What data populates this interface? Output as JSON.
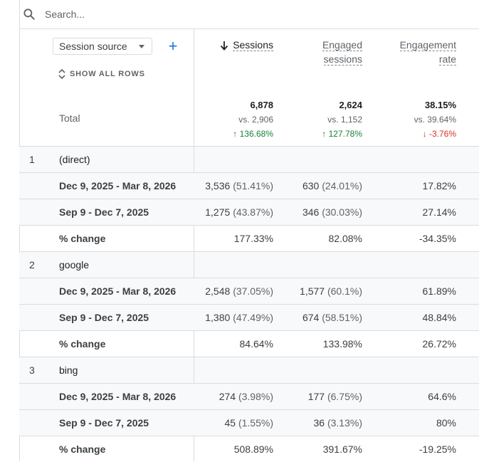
{
  "search": {
    "placeholder": "Search..."
  },
  "dimension": {
    "label": "Session source"
  },
  "show_all_rows": "SHOW ALL ROWS",
  "columns": {
    "sessions": "Sessions",
    "engaged_line1": "Engaged",
    "engaged_line2": "sessions",
    "rate_line1": "Engagement",
    "rate_line2": "rate"
  },
  "total": {
    "label": "Total",
    "sessions": {
      "value": "6,878",
      "vs": "vs. 2,906",
      "change": "↑ 136.68%"
    },
    "engaged": {
      "value": "2,624",
      "vs": "vs. 1,152",
      "change": "↑ 127.78%"
    },
    "rate": {
      "value": "38.15%",
      "vs": "vs. 39.64%",
      "change": "↓ -3.76%"
    }
  },
  "groups": [
    {
      "index": "1",
      "name": "(direct)",
      "rows": [
        {
          "label": "Dec 9, 2025 - Mar 8, 2026",
          "s": "3,536",
          "sp": "(51.41%)",
          "e": "630",
          "ep": "(24.01%)",
          "r": "17.82%"
        },
        {
          "label": "Sep 9 - Dec 7, 2025",
          "s": "1,275",
          "sp": "(43.87%)",
          "e": "346",
          "ep": "(30.03%)",
          "r": "27.14%"
        },
        {
          "label": "% change",
          "s": "177.33%",
          "sp": "",
          "e": "82.08%",
          "ep": "",
          "r": "-34.35%"
        }
      ]
    },
    {
      "index": "2",
      "name": "google",
      "rows": [
        {
          "label": "Dec 9, 2025 - Mar 8, 2026",
          "s": "2,548",
          "sp": "(37.05%)",
          "e": "1,577",
          "ep": "(60.1%)",
          "r": "61.89%"
        },
        {
          "label": "Sep 9 - Dec 7, 2025",
          "s": "1,380",
          "sp": "(47.49%)",
          "e": "674",
          "ep": "(58.51%)",
          "r": "48.84%"
        },
        {
          "label": "% change",
          "s": "84.64%",
          "sp": "",
          "e": "133.98%",
          "ep": "",
          "r": "26.72%"
        }
      ]
    },
    {
      "index": "3",
      "name": "bing",
      "rows": [
        {
          "label": "Dec 9, 2025 - Mar 8, 2026",
          "s": "274",
          "sp": "(3.98%)",
          "e": "177",
          "ep": "(6.75%)",
          "r": "64.6%"
        },
        {
          "label": "Sep 9 - Dec 7, 2025",
          "s": "45",
          "sp": "(1.55%)",
          "e": "36",
          "ep": "(3.13%)",
          "r": "80%"
        },
        {
          "label": "% change",
          "s": "508.89%",
          "sp": "",
          "e": "391.67%",
          "ep": "",
          "r": "-19.25%"
        }
      ]
    }
  ],
  "colors": {
    "accent": "#1a73e8",
    "positive": "#188038",
    "negative": "#d93025",
    "shaded_row": "#f8f9fa"
  }
}
